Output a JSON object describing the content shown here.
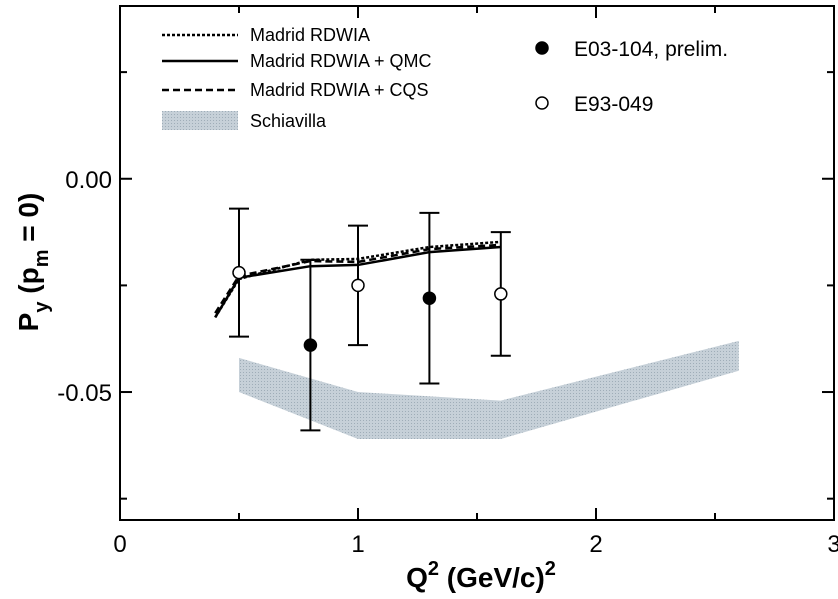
{
  "chart_data": {
    "type": "line",
    "xlabel": {
      "main": "Q",
      "sup": "2",
      "rest": " (GeV/c)",
      "sup2": "2"
    },
    "ylabel": {
      "main": "P",
      "sub": "y",
      "rest1": " (p",
      "sub2": "m",
      "rest2": " = 0)"
    },
    "xlim": [
      0,
      3
    ],
    "ylim": [
      -0.08,
      0.0405
    ],
    "x_ticks": [
      {
        "value": 0,
        "label": "0"
      },
      {
        "value": 1,
        "label": "1"
      },
      {
        "value": 2,
        "label": "2"
      },
      {
        "value": 3,
        "label": "3"
      }
    ],
    "y_ticks": [
      {
        "value": 0.0,
        "label": "0.00"
      },
      {
        "value": -0.05,
        "label": "-0.05"
      }
    ],
    "series": [
      {
        "name": "Madrid RDWIA",
        "style": "dotted",
        "x": [
          0.4,
          0.5,
          0.8,
          1.0,
          1.3,
          1.6
        ],
        "y": [
          -0.0325,
          -0.0235,
          -0.019,
          -0.0188,
          -0.016,
          -0.0148
        ]
      },
      {
        "name": "Madrid RDWIA + QMC",
        "style": "solid",
        "x": [
          0.4,
          0.5,
          0.8,
          1.0,
          1.3,
          1.6
        ],
        "y": [
          -0.0325,
          -0.0232,
          -0.0205,
          -0.0202,
          -0.0172,
          -0.016
        ]
      },
      {
        "name": "Madrid RDWIA + CQS",
        "style": "dashed",
        "x": [
          0.4,
          0.5,
          0.8,
          1.0,
          1.3,
          1.6
        ],
        "y": [
          -0.0315,
          -0.0228,
          -0.0193,
          -0.0195,
          -0.0165,
          -0.0155
        ]
      }
    ],
    "band": {
      "name": "Schiavilla",
      "x": [
        0.5,
        1.0,
        1.6,
        2.6
      ],
      "upper": [
        -0.042,
        -0.05,
        -0.052,
        -0.038
      ],
      "lower": [
        -0.05,
        -0.061,
        -0.061,
        -0.045
      ],
      "color": "#b7c3cc"
    },
    "points": [
      {
        "name": "E03-104, prelim.",
        "filled": true,
        "data": [
          {
            "x": 0.8,
            "y": -0.039,
            "err": 0.02
          },
          {
            "x": 1.3,
            "y": -0.028,
            "err": 0.02
          }
        ]
      },
      {
        "name": "E93-049",
        "filled": false,
        "data": [
          {
            "x": 0.5,
            "y": -0.022,
            "err": 0.015
          },
          {
            "x": 1.0,
            "y": -0.025,
            "err": 0.014
          },
          {
            "x": 1.6,
            "y": -0.027,
            "err": 0.0145
          }
        ]
      }
    ],
    "grid": false
  }
}
